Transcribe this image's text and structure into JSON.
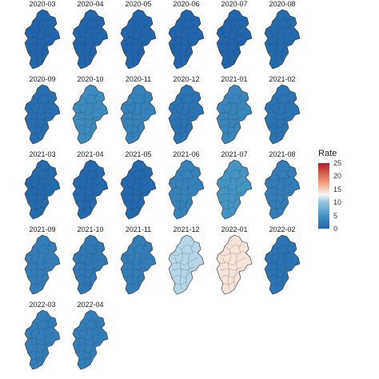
{
  "chart_data": {
    "type": "heatmap",
    "title": "",
    "legend": {
      "title": "Rate",
      "ticks": [
        "25",
        "20",
        "15",
        "10",
        "5",
        "0"
      ],
      "range": [
        0,
        25
      ],
      "colors": [
        "#2166ac",
        "#4393c3",
        "#92c5de",
        "#f7f7f7",
        "#f4a582",
        "#d6604d",
        "#b2182b"
      ],
      "placement": "right"
    },
    "panels": [
      {
        "label": "2020-03",
        "rate": 0
      },
      {
        "label": "2020-04",
        "rate": 0
      },
      {
        "label": "2020-05",
        "rate": 0
      },
      {
        "label": "2020-06",
        "rate": 0
      },
      {
        "label": "2020-07",
        "rate": 0
      },
      {
        "label": "2020-08",
        "rate": 0.5
      },
      {
        "label": "2020-09",
        "rate": 1
      },
      {
        "label": "2020-10",
        "rate": 4
      },
      {
        "label": "2020-11",
        "rate": 3
      },
      {
        "label": "2020-12",
        "rate": 1.5
      },
      {
        "label": "2021-01",
        "rate": 3.5
      },
      {
        "label": "2021-02",
        "rate": 1.5
      },
      {
        "label": "2021-03",
        "rate": 0.5
      },
      {
        "label": "2021-04",
        "rate": 0.3
      },
      {
        "label": "2021-05",
        "rate": 0.3
      },
      {
        "label": "2021-06",
        "rate": 3
      },
      {
        "label": "2021-07",
        "rate": 5
      },
      {
        "label": "2021-08",
        "rate": 2.5
      },
      {
        "label": "2021-09",
        "rate": 2.5
      },
      {
        "label": "2021-10",
        "rate": 2
      },
      {
        "label": "2021-11",
        "rate": 2.5
      },
      {
        "label": "2021-12",
        "rate": 11
      },
      {
        "label": "2022-01",
        "rate": 14
      },
      {
        "label": "2022-02",
        "rate": 1.5
      },
      {
        "label": "2022-03",
        "rate": 2.5
      },
      {
        "label": "2022-04",
        "rate": 2.5
      }
    ]
  }
}
